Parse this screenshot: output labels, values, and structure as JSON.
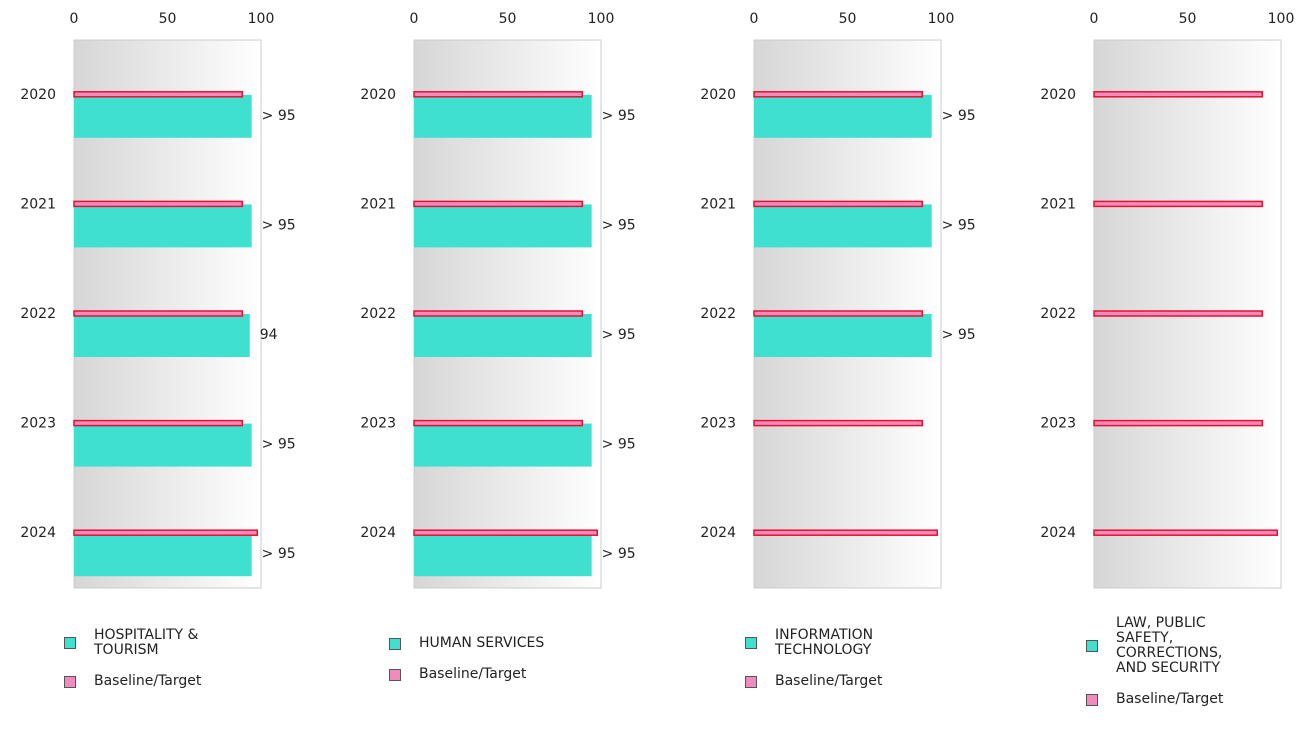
{
  "chart_data": [
    {
      "type": "bar",
      "categories": [
        "2020",
        "2021",
        "2022",
        "2023",
        "2024"
      ],
      "series": [
        {
          "name": "HOSPITALITY & TOURISM",
          "color": "#40e0d0",
          "values": [
            95,
            95,
            94,
            95,
            95
          ],
          "value_labels": [
            "> 95",
            "> 95",
            "94",
            "> 95",
            "> 95"
          ]
        },
        {
          "name": "Baseline/Target",
          "color": "#f08cbd",
          "values": [
            90,
            90,
            90,
            90,
            98
          ]
        }
      ],
      "xlim": [
        0,
        100
      ],
      "xticks": [
        0,
        50,
        100
      ]
    },
    {
      "type": "bar",
      "categories": [
        "2020",
        "2021",
        "2022",
        "2023",
        "2024"
      ],
      "series": [
        {
          "name": "HUMAN SERVICES",
          "color": "#40e0d0",
          "values": [
            95,
            95,
            95,
            95,
            95
          ],
          "value_labels": [
            "> 95",
            "> 95",
            "> 95",
            "> 95",
            "> 95"
          ]
        },
        {
          "name": "Baseline/Target",
          "color": "#f08cbd",
          "values": [
            90,
            90,
            90,
            90,
            98
          ]
        }
      ],
      "xlim": [
        0,
        100
      ],
      "xticks": [
        0,
        50,
        100
      ]
    },
    {
      "type": "bar",
      "categories": [
        "2020",
        "2021",
        "2022",
        "2023",
        "2024"
      ],
      "series": [
        {
          "name": "INFORMATION TECHNOLOGY",
          "color": "#40e0d0",
          "values": [
            95,
            95,
            95,
            null,
            null
          ],
          "value_labels": [
            "> 95",
            "> 95",
            "> 95",
            null,
            null
          ]
        },
        {
          "name": "Baseline/Target",
          "color": "#f08cbd",
          "values": [
            90,
            90,
            90,
            90,
            98
          ]
        }
      ],
      "xlim": [
        0,
        100
      ],
      "xticks": [
        0,
        50,
        100
      ]
    },
    {
      "type": "bar",
      "categories": [
        "2020",
        "2021",
        "2022",
        "2023",
        "2024"
      ],
      "series": [
        {
          "name": "LAW, PUBLIC SAFETY, CORRECTIONS, AND SECURITY",
          "color": "#40e0d0",
          "values": [
            null,
            null,
            null,
            null,
            null
          ]
        },
        {
          "name": "Baseline/Target",
          "color": "#f08cbd",
          "values": [
            90,
            90,
            90,
            90,
            98
          ]
        }
      ],
      "xlim": [
        0,
        100
      ],
      "xticks": [
        0,
        50,
        100
      ]
    }
  ]
}
